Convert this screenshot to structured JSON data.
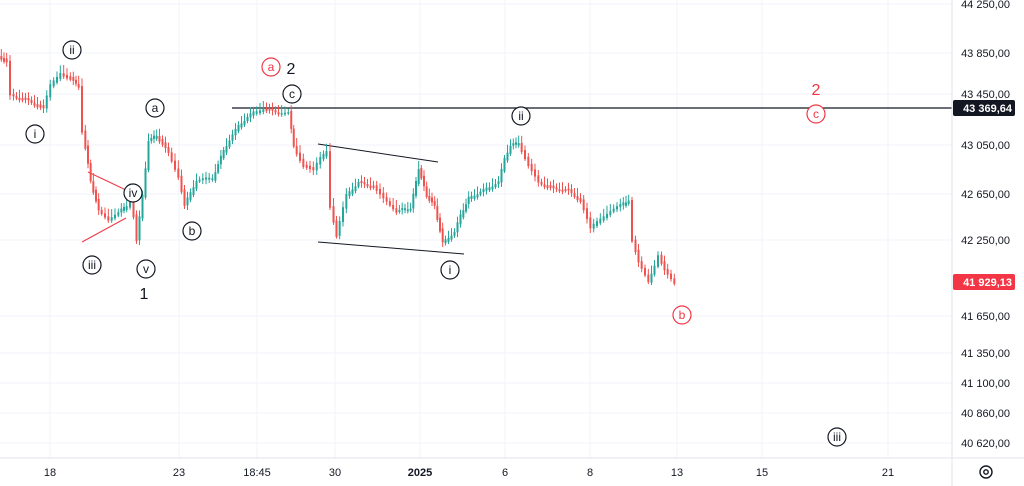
{
  "chart_data": {
    "type": "candlestick",
    "y_axis": {
      "ticks": [
        "44 250,00",
        "43 850,00",
        "43 450,00",
        "43 050,00",
        "42 650,00",
        "42 250,00",
        "41 650,00",
        "41 350,00",
        "41 100,00",
        "40 860,00",
        "40 620,00"
      ]
    },
    "x_axis": {
      "ticks": [
        {
          "label": "18",
          "bold": false
        },
        {
          "label": "23",
          "bold": false
        },
        {
          "label": "18:45",
          "bold": false
        },
        {
          "label": "30",
          "bold": false
        },
        {
          "label": "2025",
          "bold": true
        },
        {
          "label": "6",
          "bold": false
        },
        {
          "label": "8",
          "bold": false
        },
        {
          "label": "13",
          "bold": false
        },
        {
          "label": "15",
          "bold": false
        },
        {
          "label": "21",
          "bold": false
        }
      ]
    },
    "price_levels": [
      {
        "value": "43 369,64",
        "tag_color": "#131722"
      },
      {
        "value": "41 929,13",
        "tag_color": "#f23645"
      }
    ],
    "wave_labels": [
      {
        "text": "i",
        "circled": true,
        "color": "#131722"
      },
      {
        "text": "ii",
        "circled": true,
        "color": "#131722"
      },
      {
        "text": "iii",
        "circled": true,
        "color": "#131722"
      },
      {
        "text": "iv",
        "circled": true,
        "color": "#131722"
      },
      {
        "text": "v",
        "circled": true,
        "color": "#131722"
      },
      {
        "text": "1",
        "circled": false,
        "color": "#131722"
      },
      {
        "text": "a",
        "circled": true,
        "color": "#131722"
      },
      {
        "text": "b",
        "circled": true,
        "color": "#131722"
      },
      {
        "text": "a",
        "circled": true,
        "color": "#f23645"
      },
      {
        "text": "2",
        "circled": false,
        "color": "#131722"
      },
      {
        "text": "c",
        "circled": true,
        "color": "#131722"
      },
      {
        "text": "i",
        "circled": true,
        "color": "#131722"
      },
      {
        "text": "ii",
        "circled": true,
        "color": "#131722"
      },
      {
        "text": "2",
        "circled": false,
        "color": "#f23645"
      },
      {
        "text": "c",
        "circled": true,
        "color": "#f23645"
      },
      {
        "text": "b",
        "circled": true,
        "color": "#f23645"
      },
      {
        "text": "iii",
        "circled": true,
        "color": "#131722"
      }
    ],
    "colors": {
      "up": "#26a69a",
      "down": "#ef5350",
      "grid": "#f0f3fa",
      "text": "#131722",
      "accent_red": "#f23645"
    }
  },
  "toolbar": {
    "settings_icon": "gear-icon"
  }
}
